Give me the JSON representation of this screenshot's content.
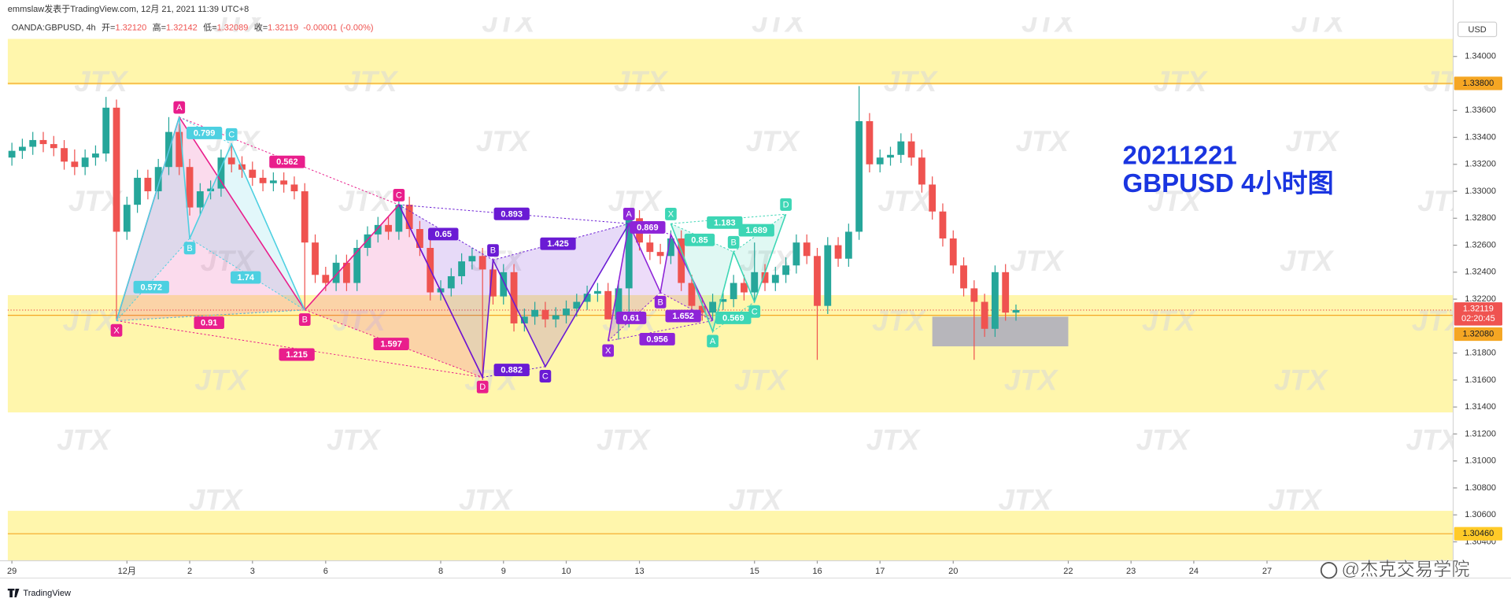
{
  "header": {
    "author_line": "emmslaw发表于TradingView.com, 12月 21, 2021 11:39 UTC+8",
    "symbol": "OANDA:GBPUSD, 4h",
    "ohlc": [
      {
        "key": "开=",
        "value": {
          "value": 1.3212,
          "label": "1.32120"
        }
      },
      {
        "key": "高=",
        "value": 1.32142
      },
      {
        "key": "低=",
        "value": 1.32089
      },
      {
        "key": "收=",
        "value": 1.32119
      }
    ],
    "change": -1e-05,
    "change_pct": "(-0.00%)"
  },
  "chart_data": {
    "type": "candlestick",
    "title": "20211221",
    "subtitle": "GBPUSD 4小时图",
    "title_color": "#1a35e0",
    "axis_unit": "USD",
    "colors": {
      "up": "#26a69a",
      "down": "#ef5350"
    },
    "candles": {
      "open": [
        1.3325,
        1.333,
        1.3333,
        1.3338,
        1.3335,
        1.3332,
        1.3322,
        1.3318,
        1.3325,
        1.3328,
        1.3362,
        1.327,
        1.329,
        1.331,
        1.33,
        1.3318,
        1.3344,
        1.3318,
        1.3288,
        1.33,
        1.3302,
        1.3325,
        1.332,
        1.3316,
        1.331,
        1.3306,
        1.3308,
        1.3305,
        1.33,
        1.3262,
        1.3238,
        1.3232,
        1.3247,
        1.3232,
        1.3258,
        1.3268,
        1.3275,
        1.327,
        1.329,
        1.3272,
        1.3258,
        1.3225,
        1.3228,
        1.3237,
        1.3248,
        1.3252,
        1.3242,
        1.3222,
        1.324,
        1.3202,
        1.3207,
        1.3212,
        1.3205,
        1.3208,
        1.3213,
        1.3218,
        1.3224,
        1.3226,
        1.3205,
        1.3228,
        1.328,
        1.3262,
        1.3255,
        1.3252,
        1.3265,
        1.3232,
        1.3215,
        1.321,
        1.3218,
        1.322,
        1.3232,
        1.3225,
        1.324,
        1.3232,
        1.3238,
        1.3245,
        1.3262,
        1.3252,
        1.3215,
        1.326,
        1.325,
        1.327,
        1.3352,
        1.332,
        1.3325,
        1.3327,
        1.3337,
        1.3325,
        1.3305,
        1.3285,
        1.3265,
        1.3245,
        1.3228,
        1.3218,
        1.3198,
        1.324,
        1.321
      ],
      "high": [
        1.3336,
        1.3339,
        1.3344,
        1.3344,
        1.3341,
        1.3338,
        1.3331,
        1.3331,
        1.3334,
        1.337,
        1.3368,
        1.3296,
        1.3316,
        1.3316,
        1.3324,
        1.3355,
        1.335,
        1.3324,
        1.3306,
        1.3308,
        1.3331,
        1.3335,
        1.3326,
        1.3322,
        1.3316,
        1.3314,
        1.3314,
        1.3311,
        1.3306,
        1.3268,
        1.3244,
        1.3253,
        1.3253,
        1.3264,
        1.3274,
        1.3281,
        1.3281,
        1.3296,
        1.3296,
        1.3278,
        1.3264,
        1.3234,
        1.3243,
        1.3254,
        1.3258,
        1.3258,
        1.325,
        1.3246,
        1.3246,
        1.3213,
        1.3218,
        1.3218,
        1.3214,
        1.3219,
        1.3224,
        1.323,
        1.3232,
        1.3232,
        1.3234,
        1.3286,
        1.3286,
        1.3268,
        1.3261,
        1.3271,
        1.3271,
        1.3238,
        1.3221,
        1.3224,
        1.3226,
        1.3238,
        1.3238,
        1.3262,
        1.3246,
        1.3244,
        1.3251,
        1.3268,
        1.3268,
        1.3258,
        1.3266,
        1.3266,
        1.3276,
        1.3378,
        1.3358,
        1.3331,
        1.3333,
        1.3343,
        1.3343,
        1.3331,
        1.3311,
        1.3291,
        1.3271,
        1.3251,
        1.3234,
        1.3224,
        1.3245,
        1.3246,
        1.3216
      ],
      "low": [
        1.3319,
        1.3324,
        1.3327,
        1.3329,
        1.3326,
        1.3316,
        1.3312,
        1.3312,
        1.3319,
        1.3322,
        1.3205,
        1.3264,
        1.3284,
        1.3294,
        1.3294,
        1.3312,
        1.3312,
        1.3282,
        1.3282,
        1.3294,
        1.3296,
        1.3314,
        1.331,
        1.3304,
        1.33,
        1.33,
        1.3299,
        1.3294,
        1.3212,
        1.3232,
        1.3226,
        1.3226,
        1.3226,
        1.3226,
        1.3252,
        1.3262,
        1.3264,
        1.3264,
        1.3266,
        1.3252,
        1.3219,
        1.3219,
        1.3222,
        1.3231,
        1.3242,
        1.316,
        1.3216,
        1.3216,
        1.3196,
        1.3196,
        1.3201,
        1.3199,
        1.3199,
        1.3202,
        1.3207,
        1.3212,
        1.3218,
        1.3218,
        1.319,
        1.3199,
        1.3256,
        1.3249,
        1.3246,
        1.3246,
        1.3226,
        1.3209,
        1.3204,
        1.3204,
        1.3212,
        1.3214,
        1.3219,
        1.3219,
        1.3226,
        1.3226,
        1.3232,
        1.3239,
        1.3246,
        1.3175,
        1.3209,
        1.3244,
        1.3244,
        1.3264,
        1.3314,
        1.3314,
        1.3319,
        1.3321,
        1.3319,
        1.3299,
        1.3279,
        1.3259,
        1.3239,
        1.3222,
        1.3175,
        1.3192,
        1.3192,
        1.3204,
        1.3204
      ],
      "close": [
        1.333,
        1.3333,
        1.3338,
        1.3335,
        1.3332,
        1.3322,
        1.3318,
        1.3325,
        1.3328,
        1.3362,
        1.327,
        1.329,
        1.331,
        1.33,
        1.3318,
        1.3344,
        1.3318,
        1.3288,
        1.33,
        1.3302,
        1.3325,
        1.332,
        1.3316,
        1.331,
        1.3306,
        1.3308,
        1.3305,
        1.33,
        1.3262,
        1.3238,
        1.3232,
        1.3247,
        1.3232,
        1.3258,
        1.3268,
        1.3275,
        1.327,
        1.329,
        1.3272,
        1.3258,
        1.3225,
        1.3228,
        1.3237,
        1.3248,
        1.3252,
        1.3242,
        1.3222,
        1.324,
        1.3202,
        1.3207,
        1.3212,
        1.3205,
        1.3208,
        1.3213,
        1.3218,
        1.3224,
        1.3226,
        1.3205,
        1.3228,
        1.328,
        1.3262,
        1.3255,
        1.3252,
        1.3265,
        1.3232,
        1.3215,
        1.321,
        1.3218,
        1.322,
        1.3232,
        1.3225,
        1.324,
        1.3232,
        1.3238,
        1.3245,
        1.3262,
        1.3252,
        1.3215,
        1.326,
        1.325,
        1.327,
        1.3352,
        1.332,
        1.3325,
        1.3327,
        1.3337,
        1.3325,
        1.3305,
        1.3285,
        1.3265,
        1.3245,
        1.3228,
        1.3218,
        1.3198,
        1.324,
        1.321,
        1.32119
      ]
    },
    "xlim": [
      -0.4,
      137.8
    ],
    "xticks": [
      {
        "value": 0,
        "label": "29"
      },
      {
        "value": 11,
        "label": "12月"
      },
      {
        "value": 17,
        "label": "2"
      },
      {
        "value": 23,
        "label": "3"
      },
      {
        "value": 30,
        "label": "6"
      },
      {
        "value": 41,
        "label": "8"
      },
      {
        "value": 47,
        "label": "9"
      },
      {
        "value": 53,
        "label": "10"
      },
      {
        "value": 60,
        "label": "13"
      },
      {
        "value": 71,
        "label": "15"
      },
      {
        "value": 77,
        "label": "16"
      },
      {
        "value": 83,
        "label": "17"
      },
      {
        "value": 90,
        "label": "20"
      },
      {
        "value": 101,
        "label": "22"
      },
      {
        "value": 107,
        "label": "23"
      },
      {
        "value": 113,
        "label": "24"
      },
      {
        "value": 120,
        "label": "27"
      }
    ],
    "ylim": [
      1.3026,
      1.3429
    ],
    "yticks": [
      {
        "value": 1.34,
        "label": "1.34000"
      },
      {
        "value": 1.336,
        "label": "1.33600"
      },
      {
        "value": 1.334,
        "label": "1.33400"
      },
      {
        "value": 1.332,
        "label": "1.33200"
      },
      {
        "value": 1.33,
        "label": "1.33000"
      },
      {
        "value": 1.328,
        "label": "1.32800"
      },
      {
        "value": 1.326,
        "label": "1.32600"
      },
      {
        "value": 1.324,
        "label": "1.32400"
      },
      {
        "value": 1.322,
        "label": "1.32200"
      },
      {
        "value": 1.318,
        "label": "1.31800"
      },
      {
        "value": 1.316,
        "label": "1.31600"
      },
      {
        "value": 1.314,
        "label": "1.31400"
      },
      {
        "value": 1.312,
        "label": "1.31200"
      },
      {
        "value": 1.31,
        "label": "1.31000"
      },
      {
        "value": 1.308,
        "label": "1.30800"
      },
      {
        "value": 1.306,
        "label": "1.30600"
      },
      {
        "value": 1.304,
        "label": "1.30400"
      }
    ],
    "zones": [
      {
        "top": 1.3413,
        "bottom": 1.3379
      },
      {
        "top": 1.3223,
        "bottom": 1.3136
      },
      {
        "top": 1.3063,
        "bottom": 1.3026
      }
    ],
    "zone_color": "#fff59d",
    "levels": [
      1.338,
      1.3208,
      1.3046
    ],
    "level_color": "#f5a623",
    "current_price": 1.32119,
    "current_color": "#ef5350",
    "box": {
      "x0": 88,
      "x1": 101,
      "top": 1.3207,
      "bottom": 1.3185,
      "color": "#9fa0c0"
    },
    "price_labels": [
      {
        "value": 1.338,
        "label": "1.33800",
        "color": "#f5a623"
      },
      {
        "value": 1.32119,
        "time": "02:20:45",
        "color": "#ef5350"
      },
      {
        "value": 1.3208,
        "label": "1.32080",
        "color": "#f5a623"
      },
      {
        "value": 1.3046,
        "label": "1.30460",
        "color": "#ffca28"
      }
    ],
    "patterns": [
      {
        "color": "#e91e8c",
        "points": [
          {
            "x": 10,
            "price": 1.3204,
            "label": "X"
          },
          {
            "x": 16,
            "price": 1.3355,
            "label": "A"
          },
          {
            "x": 28,
            "price": 1.3212,
            "label": "B"
          },
          {
            "x": 37,
            "price": 1.329,
            "label": "C"
          },
          {
            "x": 45,
            "price": 1.3162,
            "label": "D"
          }
        ],
        "ratios": [
          0.562,
          0.91,
          1.215,
          1.597
        ]
      },
      {
        "color": "#4dd0e1",
        "points": [
          {
            "x": 10,
            "price": 1.3204,
            "label": null
          },
          {
            "x": 16,
            "price": 1.3355,
            "label": null
          },
          {
            "x": 17,
            "price": 1.3265,
            "label": "B"
          },
          {
            "x": 21,
            "price": 1.3335,
            "label": "C"
          },
          {
            "x": 28,
            "price": 1.3212,
            "label": null
          }
        ],
        "ratios": [
          0.799,
          0.572,
          1.74
        ]
      },
      {
        "color": "#6a1bd4",
        "points": [
          {
            "x": 37,
            "price": 1.329,
            "label": null
          },
          {
            "x": 45,
            "price": 1.3162,
            "label": null
          },
          {
            "x": 46,
            "price": 1.3249,
            "label": "B"
          },
          {
            "x": 51,
            "price": 1.317,
            "label": "C"
          },
          {
            "x": 59,
            "price": 1.3276,
            "label": null
          }
        ],
        "ratios": [
          0.65,
          0.893,
          1.425,
          0.882
        ]
      },
      {
        "color": "#8e24d8",
        "points": [
          {
            "x": 57,
            "price": 1.3189,
            "label": "X"
          },
          {
            "x": 59,
            "price": 1.3276,
            "label": "A"
          },
          {
            "x": 62,
            "price": 1.3225,
            "label": "B"
          },
          {
            "x": 63,
            "price": 1.3268,
            "label": null
          },
          {
            "x": 67,
            "price": 1.3204,
            "label": null
          }
        ],
        "ratios": [
          0.869,
          0.61,
          1.652,
          0.956
        ]
      },
      {
        "color": "#3dd6b5",
        "points": [
          {
            "x": 63,
            "price": 1.3276,
            "label": "X"
          },
          {
            "x": 67,
            "price": 1.3196,
            "label": "A"
          },
          {
            "x": 69,
            "price": 1.3255,
            "label": "B"
          },
          {
            "x": 71,
            "price": 1.3218,
            "label": "C"
          },
          {
            "x": 74,
            "price": 1.3283,
            "label": "D"
          }
        ],
        "ratios": [
          0.85,
          1.183,
          0.569,
          1.689
        ]
      }
    ]
  },
  "watermark": "JTX",
  "footer": {
    "brand": "TradingView",
    "credit": "@杰克交易学院"
  }
}
